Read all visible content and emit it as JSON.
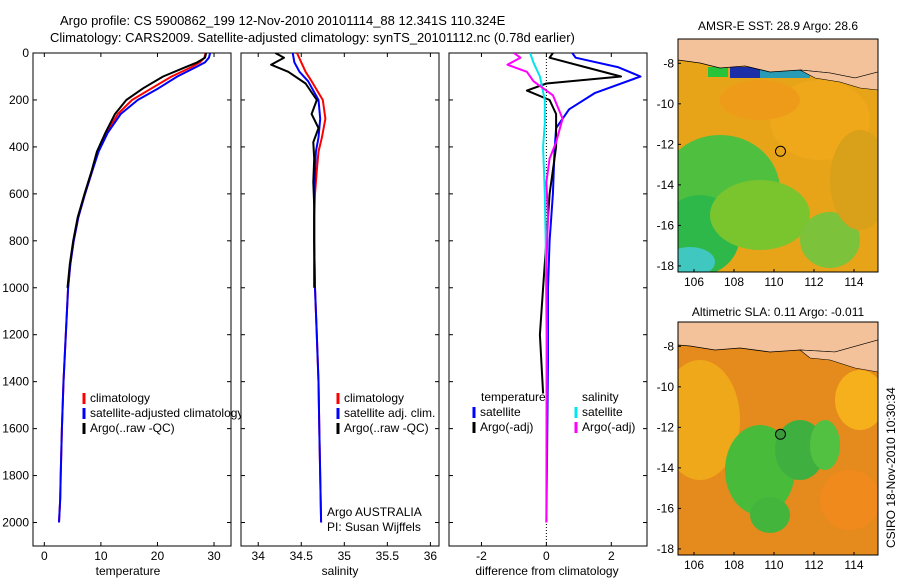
{
  "header": {
    "title_line1": "Argo profile: CS 5900862_199 12-Nov-2010 20101114_88 12.341S 110.324E",
    "title_line2": "Climatology: CARS2009. Satellite-adjusted climatology: synTS_20101112.nc (0.78d earlier)"
  },
  "side_text": "CSIRO 18-Nov-2010 10:30:34",
  "colors": {
    "climatology": "#ff0000",
    "satellite": "#0000ff",
    "argo": "#000000",
    "salt_sat": "#00e5ee",
    "salt_argo": "#ff00ff",
    "land": "#f4c29a"
  },
  "chart_data": [
    {
      "type": "line",
      "panel": "temperature",
      "xlabel": "temperature",
      "ylabel": "",
      "xlim": [
        -2,
        33
      ],
      "ylim": [
        2100,
        0
      ],
      "xticks": [
        0,
        10,
        20,
        30
      ],
      "yticks": [
        0,
        200,
        400,
        600,
        800,
        1000,
        1200,
        1400,
        1600,
        1800,
        2000
      ],
      "series": [
        {
          "name": "climatology",
          "color": "#ff0000",
          "x": [
            28.5,
            28.3,
            27.5,
            26.0,
            22.5,
            19.0,
            15.5,
            13.0,
            11.0,
            9.5,
            8.5,
            7.2,
            6.0,
            5.2,
            4.6,
            4.2,
            3.8,
            3.4,
            3.1,
            2.9,
            2.8,
            2.6
          ],
          "y": [
            0,
            20,
            40,
            60,
            100,
            150,
            200,
            260,
            340,
            420,
            500,
            600,
            700,
            800,
            900,
            1000,
            1200,
            1400,
            1600,
            1800,
            1900,
            2000
          ]
        },
        {
          "name": "satellite-adjusted climatology",
          "color": "#0000ff",
          "x": [
            29.3,
            29.1,
            28.4,
            26.8,
            23.5,
            20.2,
            16.5,
            13.5,
            11.2,
            9.6,
            8.5,
            7.2,
            6.0,
            5.2,
            4.6,
            4.2,
            3.8,
            3.4,
            3.1,
            2.9,
            2.8,
            2.6
          ],
          "y": [
            0,
            20,
            40,
            60,
            100,
            150,
            200,
            260,
            340,
            420,
            500,
            600,
            700,
            800,
            900,
            1000,
            1200,
            1400,
            1600,
            1800,
            1900,
            2000
          ]
        },
        {
          "name": "Argo(..raw -QC)",
          "color": "#000000",
          "x": [
            28.6,
            28.4,
            27.0,
            25.0,
            21.0,
            17.5,
            14.5,
            12.5,
            10.8,
            9.3,
            8.4,
            7.1,
            5.9,
            5.1,
            4.5,
            4.1
          ],
          "y": [
            0,
            20,
            40,
            60,
            100,
            150,
            200,
            260,
            340,
            420,
            500,
            600,
            700,
            800,
            900,
            1000
          ]
        }
      ],
      "legend": [
        "climatology",
        "satellite-adjusted climatology",
        "Argo(..raw -QC)"
      ]
    },
    {
      "type": "line",
      "panel": "salinity",
      "xlabel": "salinity",
      "xlim": [
        33.8,
        36.1
      ],
      "ylim": [
        2100,
        0
      ],
      "xticks": [
        34,
        34.5,
        35,
        35.5,
        36
      ],
      "series": [
        {
          "name": "climatology",
          "color": "#ff0000",
          "x": [
            34.45,
            34.5,
            34.55,
            34.62,
            34.75,
            34.78,
            34.74,
            34.7,
            34.68,
            34.66,
            34.65,
            34.65,
            34.66,
            34.68,
            34.7,
            34.71,
            34.72,
            34.73
          ],
          "y": [
            0,
            40,
            80,
            120,
            200,
            280,
            360,
            420,
            500,
            600,
            700,
            800,
            1000,
            1200,
            1400,
            1600,
            1800,
            2000
          ]
        },
        {
          "name": "satellite adj. clim.",
          "color": "#0000ff",
          "x": [
            34.4,
            34.42,
            34.48,
            34.58,
            34.7,
            34.72,
            34.7,
            34.67,
            34.66,
            34.65,
            34.65,
            34.65,
            34.66,
            34.68,
            34.7,
            34.71,
            34.72,
            34.73
          ],
          "y": [
            0,
            40,
            80,
            120,
            200,
            280,
            360,
            420,
            500,
            600,
            700,
            800,
            1000,
            1200,
            1400,
            1600,
            1800,
            2000
          ]
        },
        {
          "name": "Argo(..raw -QC)",
          "color": "#000000",
          "x": [
            34.2,
            34.3,
            34.15,
            34.35,
            34.55,
            34.68,
            34.62,
            34.7,
            34.64,
            34.65,
            34.64,
            34.65,
            34.65,
            34.65
          ],
          "y": [
            0,
            20,
            50,
            80,
            130,
            200,
            260,
            320,
            380,
            450,
            550,
            650,
            800,
            1000
          ]
        }
      ],
      "legend": [
        "climatology",
        "satellite adj. clim.",
        "Argo(..raw -QC)"
      ],
      "annotations": [
        "Argo AUSTRALIA",
        "PI: Susan Wijffels"
      ]
    },
    {
      "type": "line",
      "panel": "difference",
      "xlabel": "difference from climatology",
      "xlim": [
        -3,
        3.1
      ],
      "ylim": [
        2100,
        0
      ],
      "xticks": [
        -2,
        0,
        2
      ],
      "series": [
        {
          "name": "temperature satellite",
          "color": "#0000ff",
          "x": [
            0.8,
            0.9,
            2.2,
            2.9,
            1.5,
            0.7,
            0.3,
            0.25,
            0.2,
            0.1,
            0.05,
            0.05,
            0.0
          ],
          "y": [
            0,
            20,
            60,
            100,
            170,
            240,
            320,
            420,
            600,
            800,
            1000,
            1300,
            2000
          ]
        },
        {
          "name": "temperature Argo(-adj)",
          "color": "#000000",
          "x": [
            0.2,
            0.1,
            1.2,
            2.3,
            0.0,
            -0.6,
            0.1,
            0.3,
            0.3,
            0.1,
            0.0,
            -0.1,
            -0.2,
            -0.1
          ],
          "y": [
            0,
            20,
            60,
            100,
            130,
            160,
            200,
            260,
            400,
            600,
            800,
            1000,
            1200,
            1450
          ]
        },
        {
          "name": "salinity satellite",
          "color": "#00e5ee",
          "x": [
            -0.5,
            -0.4,
            -0.2,
            -0.05,
            -0.05,
            -0.1,
            -0.05,
            -0.02,
            0.0,
            0.0
          ],
          "y": [
            0,
            40,
            100,
            200,
            300,
            400,
            600,
            800,
            1200,
            2000
          ]
        },
        {
          "name": "salinity Argo(-adj)",
          "color": "#ff00ff",
          "x": [
            -1.0,
            -0.8,
            -1.2,
            -0.6,
            -0.4,
            0.2,
            0.5,
            0.3,
            0.1,
            0.0,
            0.05,
            0.0,
            0.02,
            0.0
          ],
          "y": [
            0,
            20,
            50,
            80,
            120,
            180,
            280,
            380,
            450,
            550,
            700,
            900,
            1200,
            2000
          ]
        }
      ],
      "legend_left_title": "temperature",
      "legend_right_title": "salinity",
      "legend": [
        "satellite",
        "Argo(-adj)",
        "satellite",
        "Argo(-adj)"
      ]
    },
    {
      "type": "heatmap",
      "panel": "sst_map",
      "title": "AMSR-E SST: 28.9 Argo: 28.6",
      "xlim": [
        105.2,
        115.2
      ],
      "ylim": [
        -18.3,
        -6.8
      ],
      "xticks": [
        106,
        108,
        110,
        112,
        114
      ],
      "yticks": [
        -8,
        -10,
        -12,
        -14,
        -16,
        -18
      ],
      "float": [
        110.324,
        -12.341
      ]
    },
    {
      "type": "heatmap",
      "panel": "sla_map",
      "title": "Altimetric SLA: 0.11 Argo: -0.011",
      "xlim": [
        105.2,
        115.2
      ],
      "ylim": [
        -18.3,
        -6.8
      ],
      "xticks": [
        106,
        108,
        110,
        112,
        114
      ],
      "yticks": [
        -8,
        -10,
        -12,
        -14,
        -16,
        -18
      ],
      "float": [
        110.324,
        -12.341
      ]
    }
  ]
}
